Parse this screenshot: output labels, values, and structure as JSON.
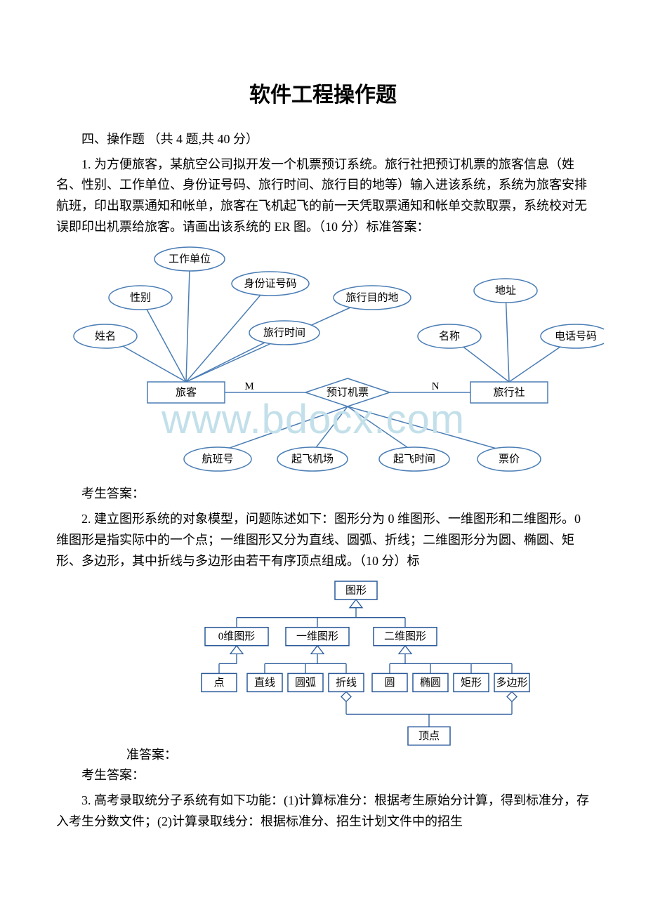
{
  "doc": {
    "title": "软件工程操作题",
    "section_header": "四、操作题 （共 4 题,共 40 分）",
    "q1": "1. 为方便旅客，某航空公司拟开发一个机票预订系统。旅行社把预订机票的旅客信息（姓名、性别、工作单位、身份证号码、旅行时间、旅行目的地等）输入进该系统，系统为旅客安排航班，印出取票通知和帐单，旅客在飞机起飞的前一天凭取票通知和帐单交款取票，系统校对无误即印出机票给旅客。请画出该系统的 ER 图。（10 分）标准答案：",
    "q1_answer_label": "考生答案：",
    "q2": "2. 建立图形系统的对象模型，问题陈述如下：图形分为 0 维图形、一维图形和二维图形。0 维图形是指实际中的一个点；一维图形又分为直线、圆弧、折线；二维图形分为圆、椭圆、矩形、多边形，其中折线与多边形由若干有序顶点组成。（10 分）标",
    "q2_suffix": "准答案：",
    "q2_answer_label": "考生答案：",
    "q3": "3. 高考录取统分子系统有如下功能：(1)计算标准分：根据考生原始分计算，得到标准分，存入考生分数文件；(2)计算录取线分：根据标准分、招生计划文件中的招生"
  },
  "er": {
    "entities": {
      "passenger": "旅客",
      "agency": "旅行社"
    },
    "relationship": "预订机票",
    "rel_left": "M",
    "rel_right": "N",
    "attrs": {
      "work_unit": "工作单位",
      "id_number": "身份证号码",
      "sex": "性别",
      "dest": "旅行目的地",
      "address": "地址",
      "name": "姓名",
      "travel_time": "旅行时间",
      "agency_name": "名称",
      "phone": "电话号码",
      "flight_no": "航班号",
      "airport": "起飞机场",
      "dep_time": "起飞时间",
      "price": "票价"
    },
    "colors": {
      "stroke": "#4a7db5",
      "fill": "#ffffff",
      "line": "#4a7db5",
      "text": "#000000"
    },
    "fontsize": 15
  },
  "uml": {
    "nodes": {
      "root": "图形",
      "d0": "0维图形",
      "d1": "一维图形",
      "d2": "二维图形",
      "point": "点",
      "line": "直线",
      "arc": "圆弧",
      "polyline": "折线",
      "circle": "圆",
      "ellipse": "椭圆",
      "rect": "矩形",
      "polygon": "多边形",
      "vertex": "顶点"
    },
    "colors": {
      "stroke": "#2a5a9b",
      "fill": "#ffffff",
      "line": "#2a5a9b",
      "text": "#000000"
    },
    "fontsize": 15
  },
  "watermark": "www.bdocx.com"
}
